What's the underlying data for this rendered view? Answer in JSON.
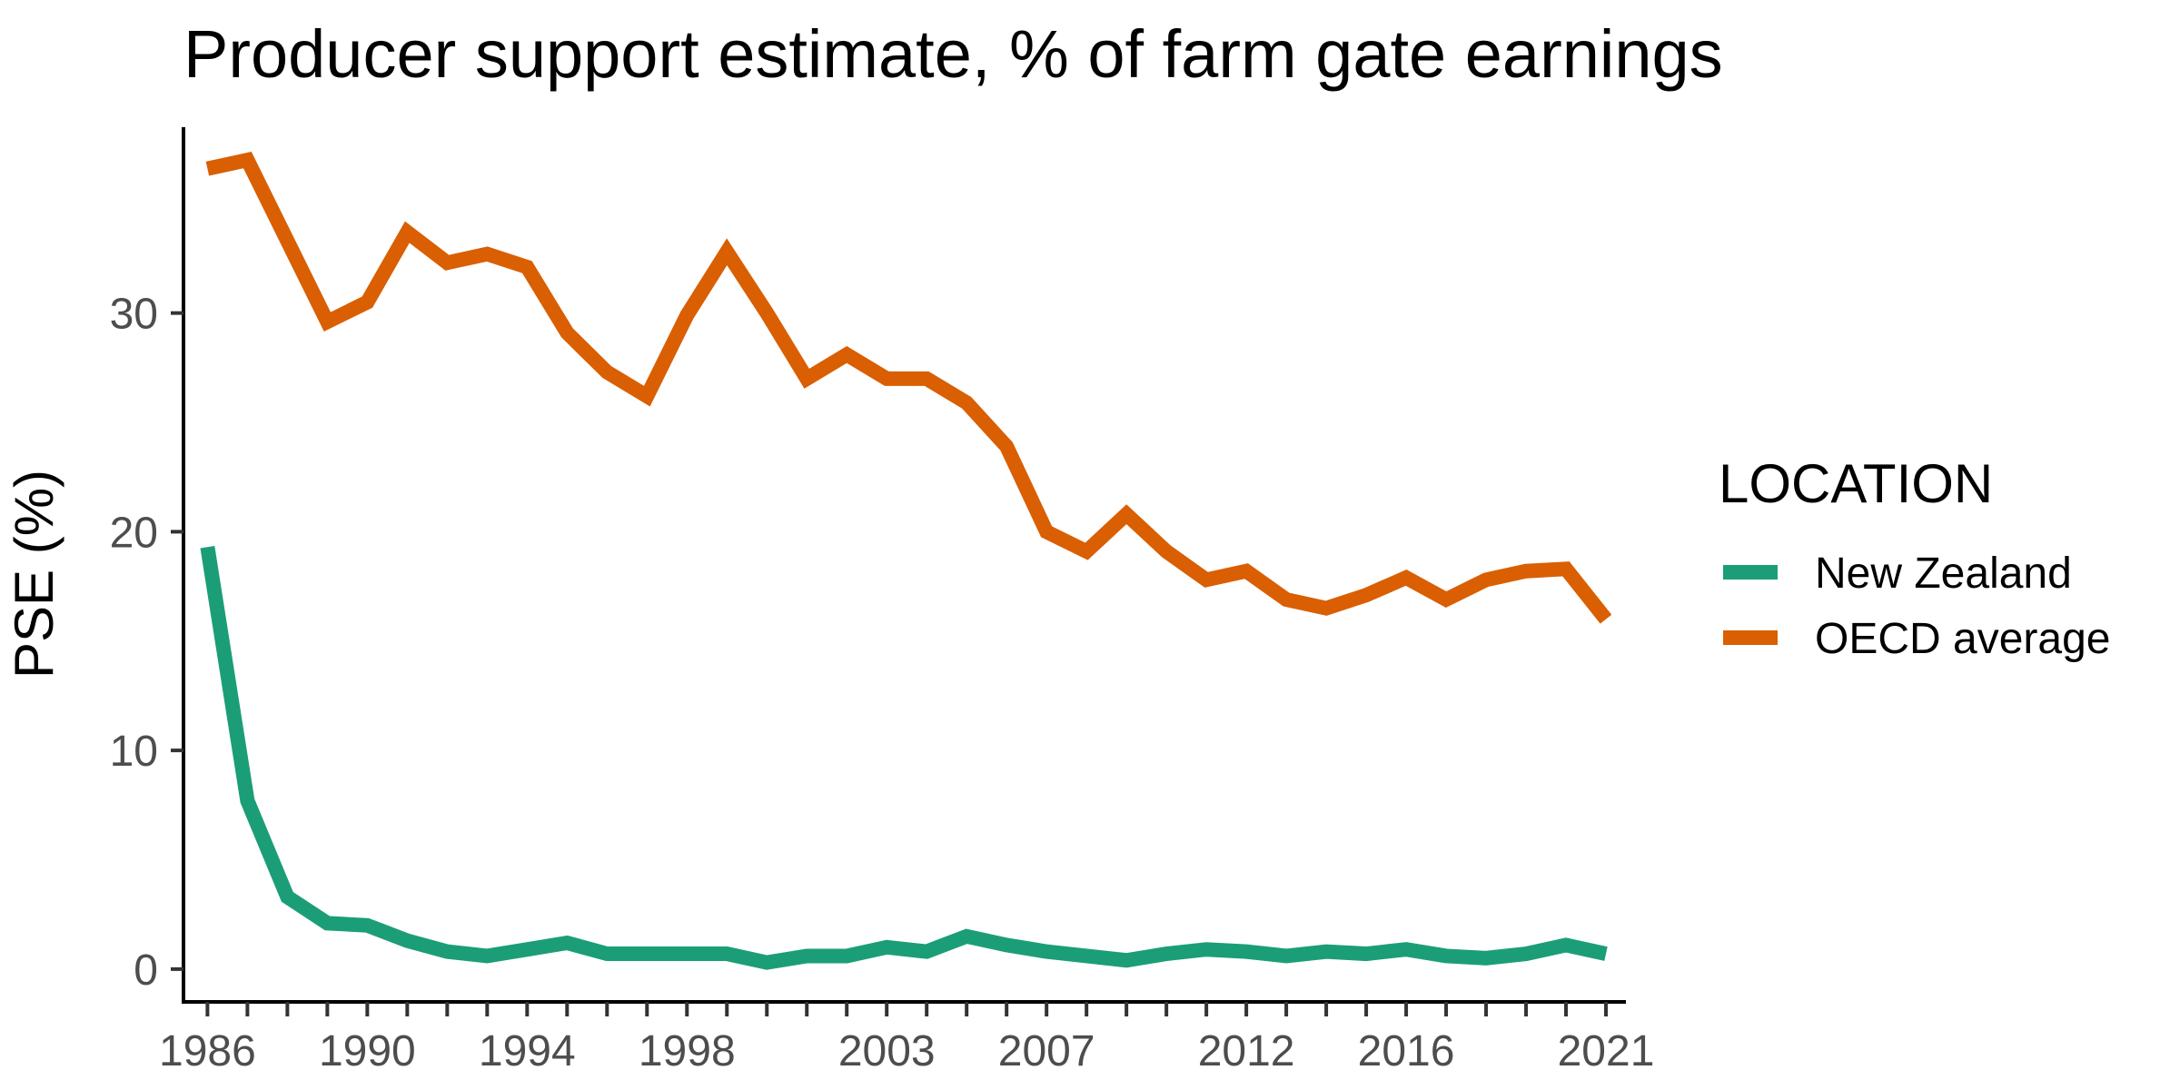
{
  "chart_data": {
    "type": "line",
    "title": "Producer support estimate, % of farm gate earnings",
    "xlabel": "",
    "ylabel": "PSE (%)",
    "x": [
      1986,
      1987,
      1988,
      1989,
      1990,
      1991,
      1992,
      1993,
      1994,
      1995,
      1996,
      1997,
      1998,
      1999,
      2000,
      2001,
      2002,
      2003,
      2004,
      2005,
      2006,
      2007,
      2008,
      2009,
      2010,
      2011,
      2012,
      2013,
      2014,
      2015,
      2016,
      2017,
      2018,
      2019,
      2020,
      2021
    ],
    "x_tick_labels": [
      "1986",
      "1990",
      "1994",
      "1998",
      "2003",
      "2007",
      "2012",
      "2016",
      "2021"
    ],
    "y_ticks": [
      0,
      10,
      20,
      30
    ],
    "xlim": [
      1985.4,
      2021.5
    ],
    "ylim": [
      -1.5,
      38.5
    ],
    "grid": false,
    "legend": {
      "title": "LOCATION",
      "placement": "right"
    },
    "series": [
      {
        "name": "New Zealand",
        "color": "#1b9e77",
        "values": [
          19.3,
          7.7,
          3.3,
          2.1,
          2.0,
          1.3,
          0.8,
          0.6,
          0.9,
          1.2,
          0.7,
          0.7,
          0.7,
          0.7,
          0.3,
          0.6,
          0.6,
          1.0,
          0.8,
          1.5,
          1.1,
          0.8,
          0.6,
          0.4,
          0.7,
          0.9,
          0.8,
          0.6,
          0.8,
          0.7,
          0.9,
          0.6,
          0.5,
          0.7,
          1.1,
          0.7
        ]
      },
      {
        "name": "OECD average",
        "color": "#d95f02",
        "values": [
          36.6,
          37.0,
          33.3,
          29.6,
          30.5,
          33.7,
          32.3,
          32.7,
          32.1,
          29.1,
          27.3,
          26.2,
          29.9,
          32.8,
          30.0,
          27.0,
          28.1,
          27.0,
          27.0,
          25.9,
          23.9,
          20.0,
          19.1,
          20.8,
          19.1,
          17.8,
          18.2,
          16.9,
          16.5,
          17.1,
          17.9,
          16.9,
          17.8,
          18.2,
          18.3,
          16.0
        ]
      }
    ]
  }
}
